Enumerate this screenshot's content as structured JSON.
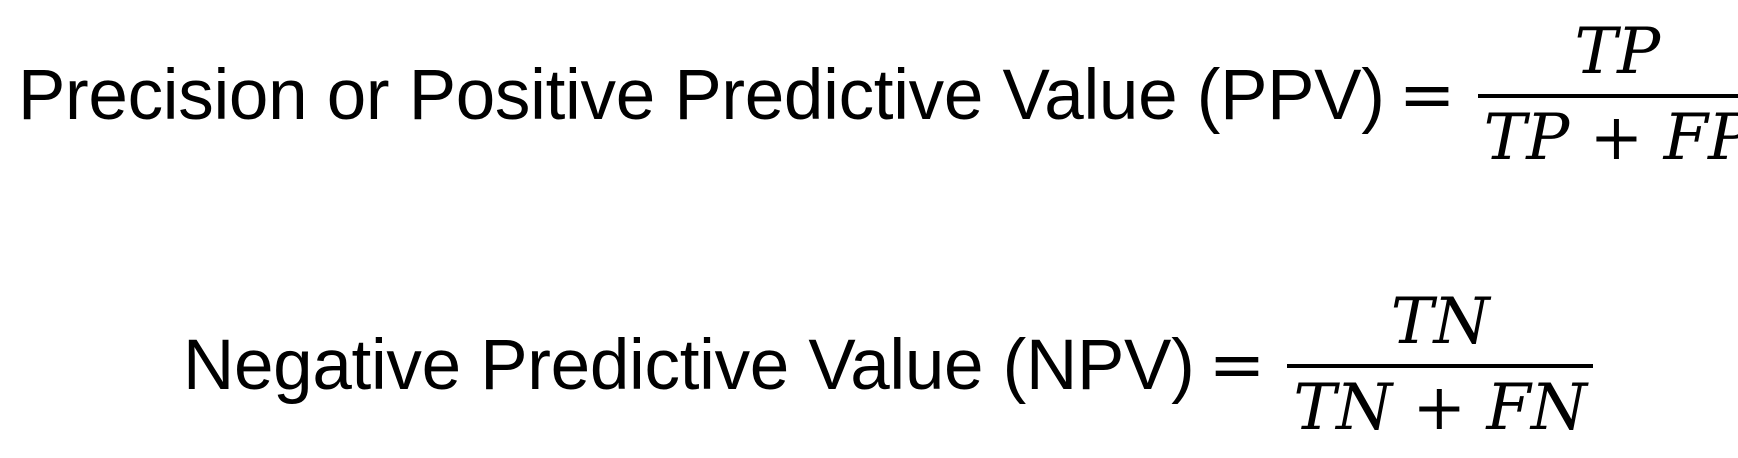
{
  "equations": [
    {
      "lhs": "Precision or Positive Predictive Value (PPV)",
      "equals": "=",
      "numerator": "TP",
      "denominator": "TP + FP"
    },
    {
      "lhs": "Negative Predictive Value (NPV)",
      "equals": "=",
      "numerator": "TN",
      "denominator": "TN + FN"
    }
  ]
}
